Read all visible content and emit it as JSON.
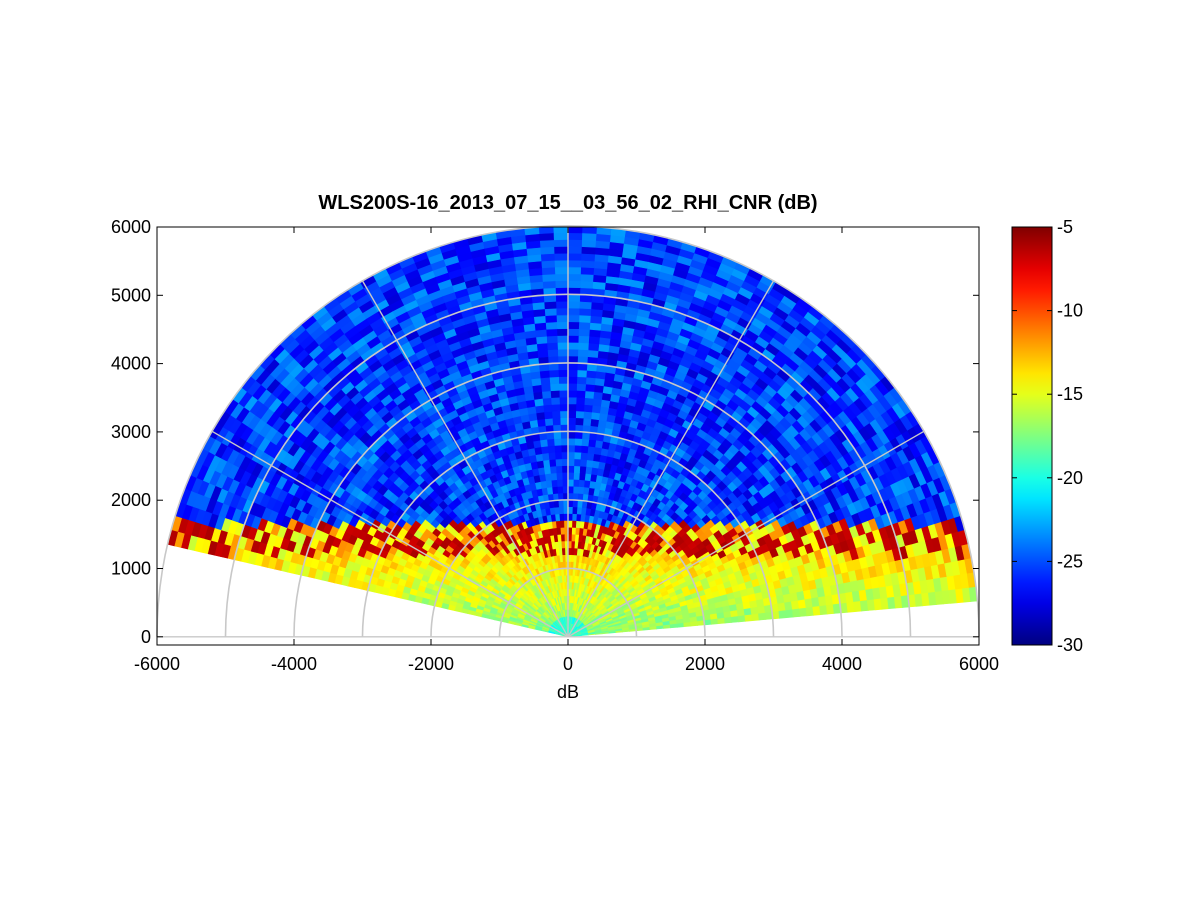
{
  "chart_data": {
    "type": "heatmap",
    "subtype": "polar-rhi-sector",
    "title": "WLS200S-16_2013_07_15__03_56_02_RHI_CNR (dB)",
    "xlabel": "dB",
    "ylabel": "",
    "xlim": [
      -6000,
      6000
    ],
    "ylim": [
      0,
      6000
    ],
    "x_ticks": [
      -6000,
      -4000,
      -2000,
      0,
      2000,
      4000,
      6000
    ],
    "y_ticks": [
      0,
      1000,
      2000,
      3000,
      4000,
      5000,
      6000
    ],
    "x_tick_labels": [
      "-6000",
      "-4000",
      "-2000",
      "0",
      "2000",
      "4000",
      "6000"
    ],
    "y_tick_labels": [
      "0",
      "1000",
      "2000",
      "3000",
      "4000",
      "5000",
      "6000"
    ],
    "range_rings": [
      1000,
      2000,
      3000,
      4000,
      5000,
      6000
    ],
    "spoke_angles_deg": [
      0,
      30,
      60,
      90,
      120,
      150,
      180
    ],
    "sector_elevation_deg": [
      5,
      167
    ],
    "max_range": 6000,
    "grid": true,
    "colormap": "jet",
    "colorbar": {
      "clim": [
        -30,
        -5
      ],
      "ticks": [
        -30,
        -25,
        -20,
        -15,
        -10,
        -5
      ],
      "tick_labels": [
        "-30",
        "-25",
        "-20",
        "-15",
        "-10",
        "-5"
      ],
      "placement": "right"
    },
    "field_profile": {
      "description_levels_dB": [
        {
          "range_max": 1000,
          "value": -19
        },
        {
          "band_altitude": [
            0,
            1200
          ],
          "value": -17
        },
        {
          "band_altitude": [
            1200,
            1650
          ],
          "value": -6
        },
        {
          "band_altitude": [
            1650,
            6000
          ],
          "value": -27
        }
      ]
    }
  }
}
